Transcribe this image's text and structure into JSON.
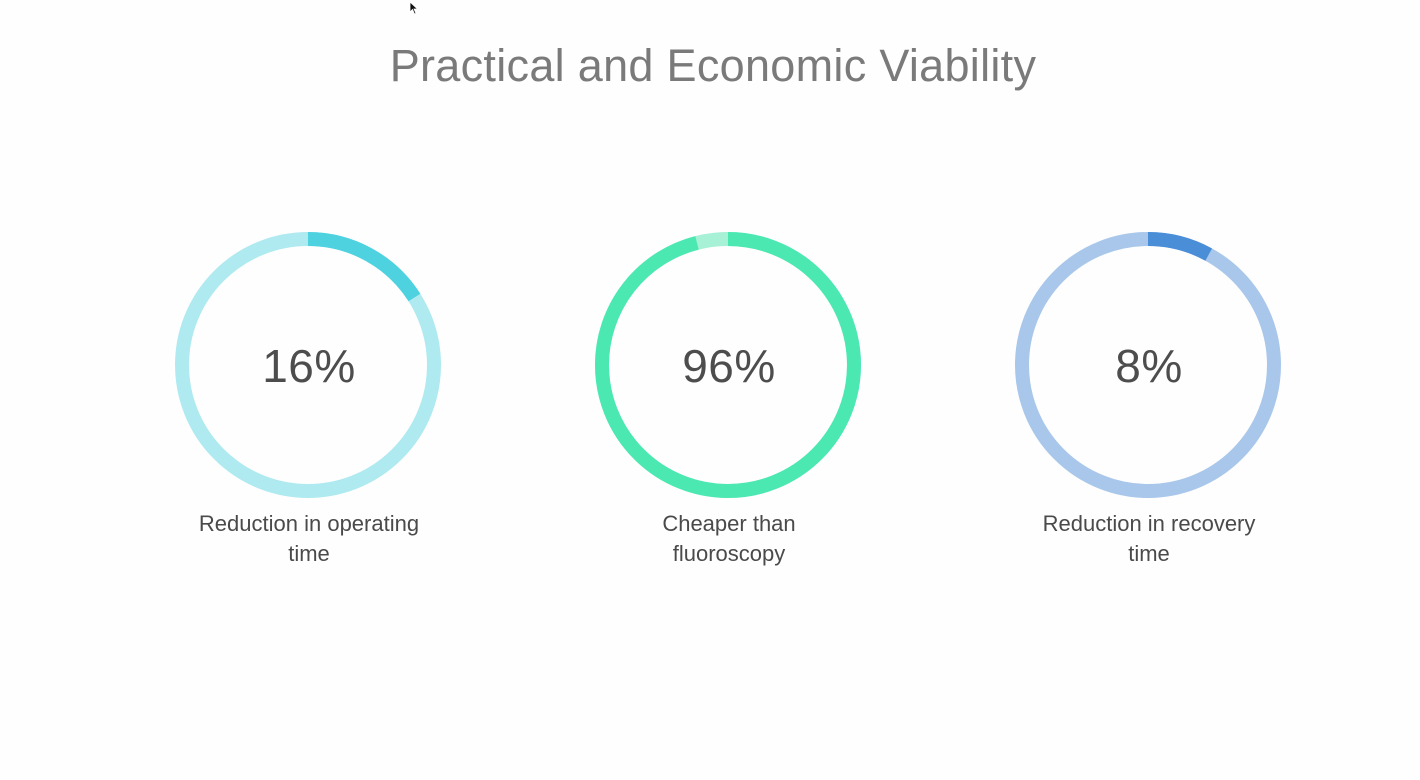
{
  "slide": {
    "title": "Practical and Economic Viability"
  },
  "gauges": [
    {
      "value_label": "16%",
      "caption_line1": "Reduction in operating",
      "caption_line2": "time",
      "fraction": 0.16,
      "track_color": "#aeeaf0",
      "fill_color": "#4fd2e0"
    },
    {
      "value_label": "96%",
      "caption_line1": "Cheaper than",
      "caption_line2": "fluoroscopy",
      "fraction": 0.96,
      "track_color": "#a7f2d6",
      "fill_color": "#4ce8b2"
    },
    {
      "value_label": "8%",
      "caption_line1": "Reduction in recovery",
      "caption_line2": "time",
      "fraction": 0.08,
      "track_color": "#a8c7ea",
      "fill_color": "#4a8ed8"
    }
  ],
  "icons": {
    "cursor": "mouse-pointer-icon"
  }
}
